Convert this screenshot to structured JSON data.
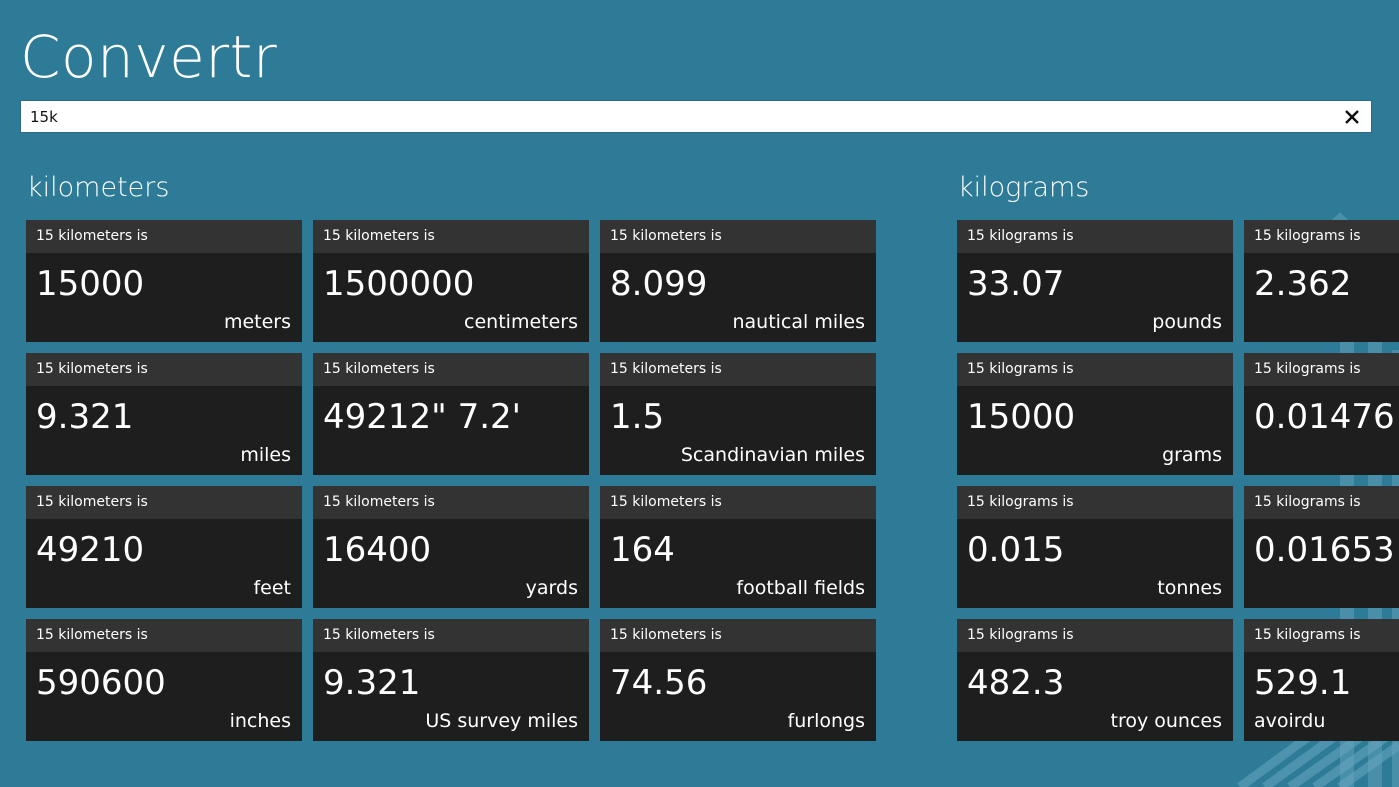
{
  "app": {
    "title": "Convertr"
  },
  "search": {
    "value": "15k",
    "clear_icon": "close-icon"
  },
  "groups": [
    {
      "title": "kilometers",
      "tiles": [
        {
          "header": "15 kilometers is",
          "value": "15000",
          "unit": "meters"
        },
        {
          "header": "15 kilometers is",
          "value": "1500000",
          "unit": "centimeters"
        },
        {
          "header": "15 kilometers is",
          "value": "8.099",
          "unit": "nautical miles"
        },
        {
          "header": "15 kilometers is",
          "value": "9.321",
          "unit": "miles"
        },
        {
          "header": "15 kilometers is",
          "value": "49212\" 7.2'",
          "unit": ""
        },
        {
          "header": "15 kilometers is",
          "value": "1.5",
          "unit": "Scandinavian miles"
        },
        {
          "header": "15 kilometers is",
          "value": "49210",
          "unit": "feet"
        },
        {
          "header": "15 kilometers is",
          "value": "16400",
          "unit": "yards"
        },
        {
          "header": "15 kilometers is",
          "value": "164",
          "unit": "football fields"
        },
        {
          "header": "15 kilometers is",
          "value": "590600",
          "unit": "inches"
        },
        {
          "header": "15 kilometers is",
          "value": "9.321",
          "unit": "US survey miles"
        },
        {
          "header": "15 kilometers is",
          "value": "74.56",
          "unit": "furlongs"
        }
      ]
    },
    {
      "title": "kilograms",
      "tiles": [
        {
          "header": "15 kilograms is",
          "value": "33.07",
          "unit": "pounds"
        },
        {
          "header": "15 kilograms is",
          "value": "2.362",
          "unit": ""
        },
        {
          "header": "15 kilograms is",
          "value": "15000",
          "unit": "grams"
        },
        {
          "header": "15 kilograms is",
          "value": "0.01476",
          "unit": ""
        },
        {
          "header": "15 kilograms is",
          "value": "0.015",
          "unit": "tonnes"
        },
        {
          "header": "15 kilograms is",
          "value": "0.01653",
          "unit": ""
        },
        {
          "header": "15 kilograms is",
          "value": "482.3",
          "unit": "troy ounces"
        },
        {
          "header": "15 kilograms is",
          "value": "529.1",
          "unit": "avoirdu"
        }
      ]
    }
  ],
  "colors": {
    "background": "#2e7b97",
    "tile": "#1e1e1e",
    "tile_header": "#333333",
    "text": "#ffffff"
  }
}
